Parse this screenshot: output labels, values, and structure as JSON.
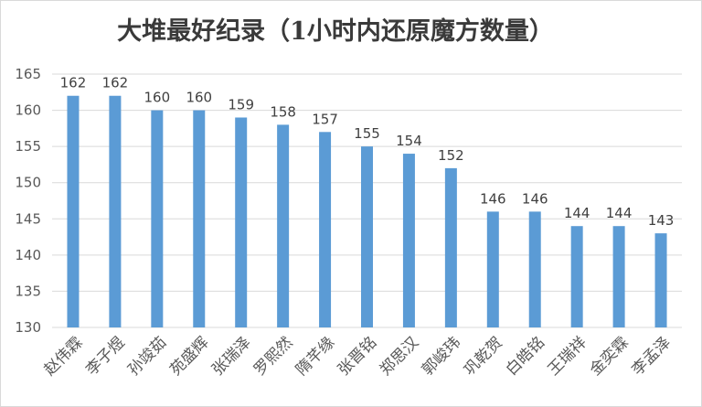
{
  "chart_data": {
    "type": "bar",
    "title": "大堆最好纪录（1小时内还原魔方数量）",
    "xlabel": "",
    "ylabel": "",
    "categories": [
      "赵伟霖",
      "李子煜",
      "孙竣茹",
      "苑盛辉",
      "张瑞泽",
      "罗熙然",
      "隋芊缘",
      "张晋铭",
      "郑思汉",
      "郭峻玮",
      "巩乾贺",
      "白皓铭",
      "王瑞祥",
      "金奕霖",
      "李孟泽"
    ],
    "values": [
      162,
      162,
      160,
      160,
      159,
      158,
      157,
      155,
      154,
      152,
      146,
      146,
      144,
      144,
      143
    ],
    "ylim": [
      130,
      165
    ],
    "yticks": [
      130,
      135,
      140,
      145,
      150,
      155,
      160,
      165
    ],
    "grid": true,
    "legend": "none",
    "bar_color": "#5b9bd5",
    "grid_color": "#d9d9d9"
  }
}
